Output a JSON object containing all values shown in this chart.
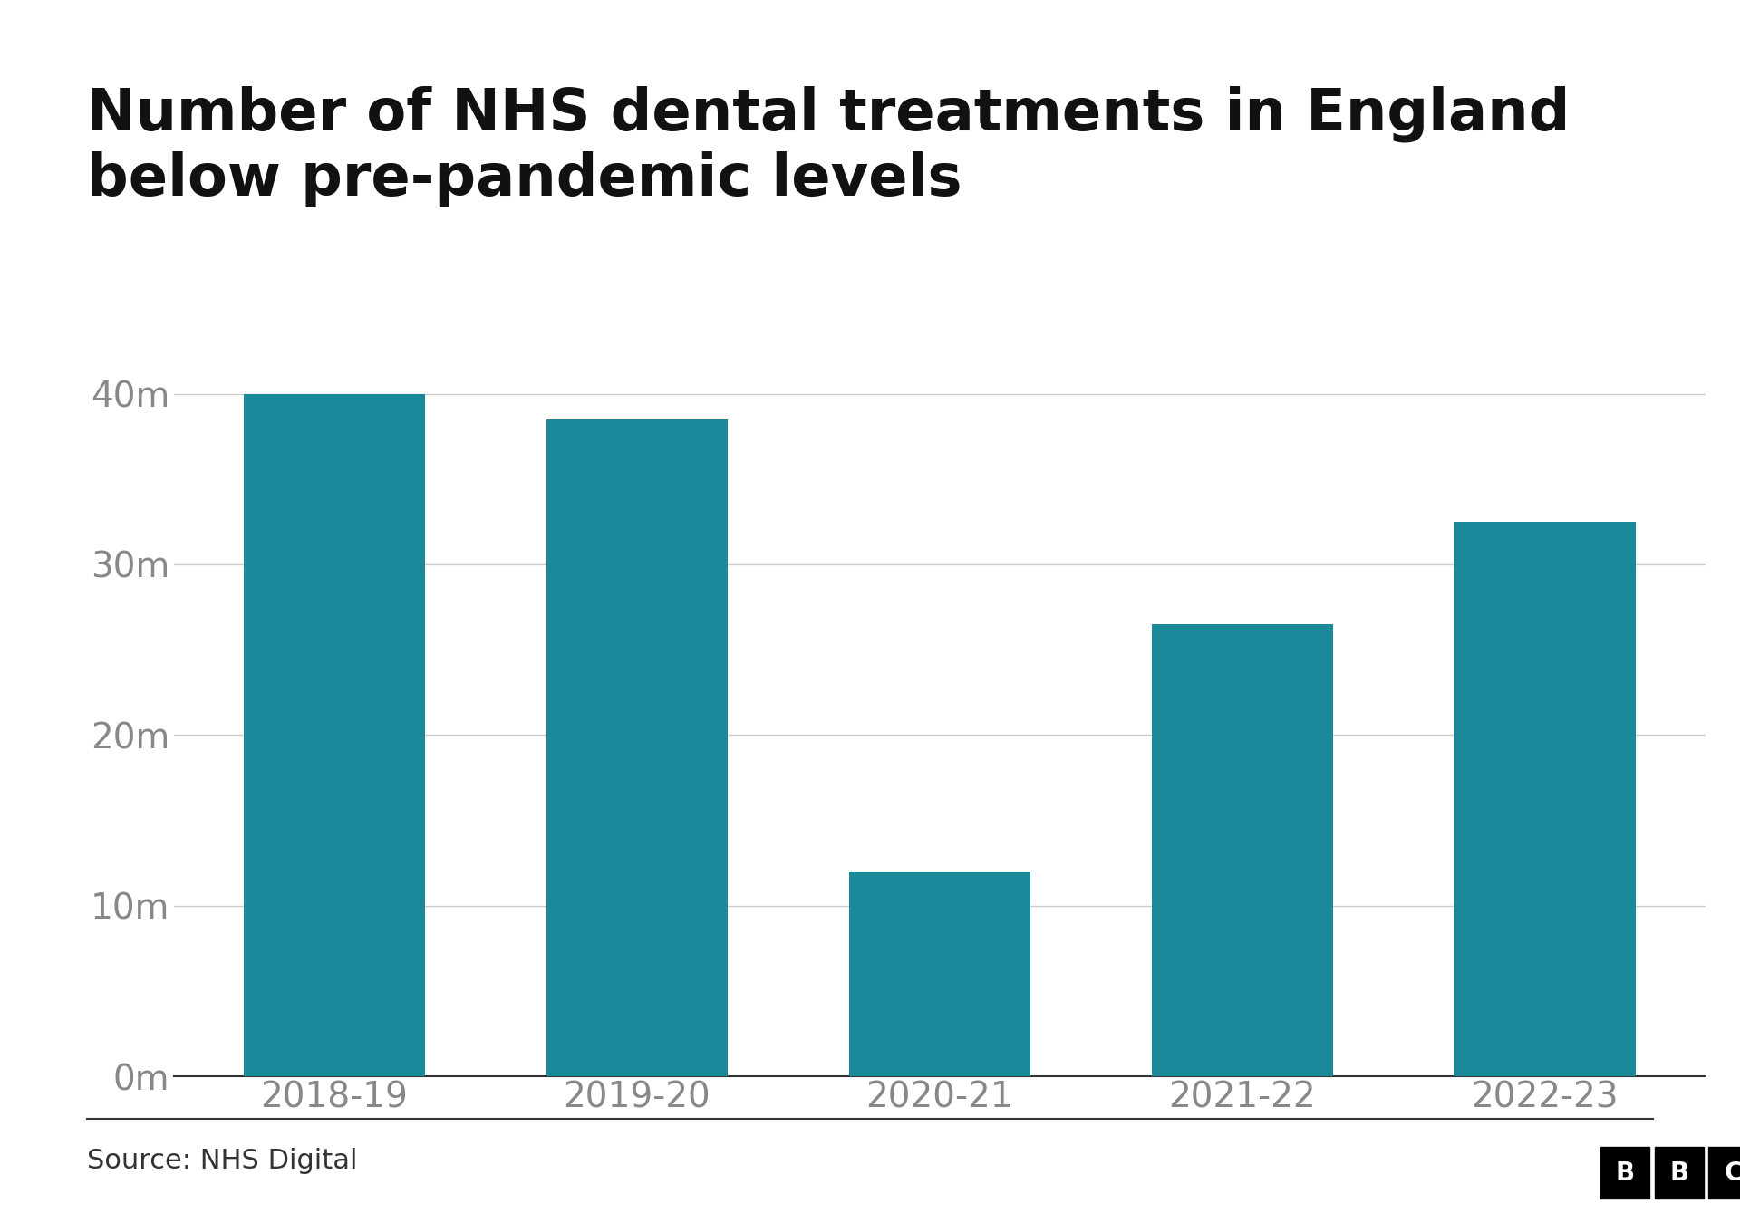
{
  "title": "Number of NHS dental treatments in England\nbelow pre-pandemic levels",
  "categories": [
    "2018-19",
    "2019-20",
    "2020-21",
    "2021-22",
    "2022-23"
  ],
  "values": [
    40000000,
    38500000,
    12000000,
    26500000,
    32500000
  ],
  "bar_color": "#1a8a9a",
  "background_color": "#ffffff",
  "title_fontsize": 46,
  "tick_fontsize": 28,
  "ytick_labels": [
    "0m",
    "10m",
    "20m",
    "30m",
    "40m"
  ],
  "ytick_values": [
    0,
    10000000,
    20000000,
    30000000,
    40000000
  ],
  "ylim": [
    0,
    43000000
  ],
  "source_text": "Source: NHS Digital",
  "source_fontsize": 22,
  "grid_color": "#cccccc",
  "axis_color": "#333333",
  "tick_color": "#888888"
}
